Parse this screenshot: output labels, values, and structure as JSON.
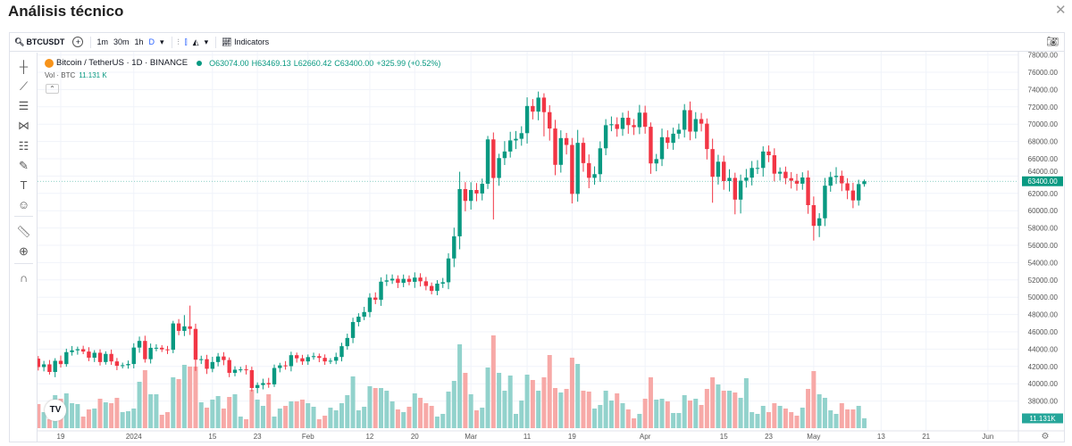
{
  "dialog": {
    "title": "Análisis técnico",
    "close_icon": "close-icon"
  },
  "toolbar": {
    "symbol": "BTCUSDT",
    "intervals": [
      "1m",
      "30m",
      "1h",
      "D"
    ],
    "indicators_label": "Indicators"
  },
  "legend": {
    "symbol_title": "Bitcoin / TetherUS · 1D · BINANCE",
    "open": "O63074.00",
    "high": "H63469.13",
    "low": "L62660.42",
    "close": "C63400.00",
    "change": "+325.99 (+0.52%)",
    "volume_label": "Vol · BTC",
    "volume_value": "11.131 K"
  },
  "colors": {
    "up": "#089981",
    "down": "#f23645",
    "up_vol": "#92d2cc",
    "down_vol": "#f7a9a7"
  },
  "chart_data": {
    "type": "candlestick",
    "first_open": 42900,
    "close": [
      41930,
      42240,
      41360,
      42650,
      42270,
      43650,
      43860,
      43990,
      43720,
      43010,
      43580,
      42510,
      43450,
      42580,
      42070,
      42140,
      42280,
      44180,
      44950,
      42840,
      44150,
      44160,
      43970,
      43930,
      46970,
      46110,
      46630,
      46340,
      42780,
      42840,
      41730,
      42510,
      43150,
      42740,
      41260,
      41620,
      41660,
      41570,
      39510,
      39850,
      40080,
      39930,
      41820,
      42120,
      42030,
      43300,
      42940,
      42580,
      43080,
      43190,
      42990,
      42580,
      42660,
      43090,
      44340,
      45290,
      47130,
      47750,
      48290,
      49960,
      49700,
      51800,
      51940,
      52130,
      51660,
      52120,
      51780,
      52270,
      51840,
      51300,
      50730,
      51570,
      51730,
      54480,
      57040,
      62500,
      61130,
      62390,
      61990,
      63110,
      68240,
      63780,
      66080,
      66840,
      68120,
      68310,
      68960,
      72100,
      71450,
      73070,
      71390,
      69500,
      65300,
      68390,
      67600,
      61940,
      67840,
      65500,
      63800,
      64220,
      67210,
      69880,
      69990,
      69450,
      70740,
      69890,
      69650,
      71330,
      69700,
      65460,
      65960,
      68490,
      67840,
      68900,
      69360,
      71620,
      69140,
      70590,
      70060,
      67120,
      63920,
      65660,
      63420,
      63790,
      61280,
      63470,
      63820,
      64940,
      64940,
      66840,
      66410,
      64280,
      64500,
      63760,
      63460,
      63120,
      63840,
      60640,
      58250,
      59120,
      62890,
      63890,
      64030,
      63160,
      62330,
      61190,
      63074,
      63400
    ],
    "wick_up_hundreds": [
      3,
      4,
      5,
      3,
      6,
      4,
      5,
      3,
      4,
      5,
      3,
      4,
      3,
      5,
      4,
      3,
      4,
      5,
      5,
      6,
      5,
      4,
      3,
      4,
      3,
      5,
      13,
      24,
      6,
      4,
      5,
      6,
      4,
      5,
      3,
      4,
      3,
      5,
      4,
      3,
      5,
      6,
      4,
      3,
      5,
      4,
      3,
      4,
      3,
      4,
      3,
      4,
      3,
      5,
      4,
      5,
      5,
      4,
      6,
      5,
      6,
      5,
      7,
      5,
      4,
      5,
      4,
      6,
      5,
      5,
      4,
      4,
      5,
      6,
      10,
      20,
      8,
      9,
      8,
      6,
      4,
      8,
      5,
      12,
      10,
      9,
      8,
      10,
      8,
      7,
      5,
      8,
      10,
      9,
      6,
      8,
      15,
      6,
      10,
      9,
      8,
      7,
      9,
      8,
      6,
      8,
      7,
      9,
      8,
      5,
      6,
      10,
      8,
      7,
      7,
      7,
      10,
      8,
      7,
      6,
      12,
      8,
      7,
      10,
      6,
      7,
      10,
      8,
      9,
      6,
      7,
      8,
      5,
      6,
      7,
      8,
      6,
      8,
      10,
      6,
      9,
      6,
      10,
      6,
      6,
      9,
      5,
      2
    ],
    "wick_down_hundreds": [
      4,
      5,
      3,
      6,
      4,
      3,
      4,
      5,
      3,
      4,
      5,
      4,
      3,
      4,
      5,
      3,
      4,
      5,
      6,
      4,
      5,
      4,
      3,
      5,
      4,
      5,
      6,
      7,
      13,
      5,
      6,
      4,
      5,
      6,
      5,
      4,
      3,
      5,
      4,
      6,
      5,
      4,
      3,
      5,
      4,
      6,
      5,
      4,
      4,
      3,
      5,
      4,
      3,
      4,
      5,
      4,
      6,
      5,
      4,
      6,
      5,
      7,
      5,
      4,
      6,
      5,
      4,
      7,
      6,
      5,
      4,
      5,
      5,
      8,
      10,
      15,
      12,
      10,
      9,
      8,
      6,
      48,
      9,
      8,
      7,
      10,
      8,
      12,
      9,
      10,
      28,
      14,
      12,
      9,
      11,
      11,
      9,
      10,
      12,
      8,
      9,
      8,
      7,
      9,
      8,
      10,
      9,
      8,
      8,
      12,
      9,
      8,
      7,
      8,
      6,
      9,
      10,
      8,
      9,
      12,
      30,
      9,
      10,
      12,
      17,
      16,
      8,
      9,
      7,
      10,
      8,
      9,
      8,
      7,
      9,
      8,
      7,
      10,
      17,
      13,
      9,
      7,
      8,
      9,
      10,
      9,
      6,
      3
    ],
    "volume_k": [
      27,
      18,
      10,
      37,
      33,
      39,
      28,
      27,
      13,
      21,
      22,
      33,
      29,
      28,
      34,
      18,
      19,
      22,
      52,
      65,
      38,
      38,
      15,
      18,
      57,
      55,
      71,
      69,
      69,
      29,
      23,
      32,
      36,
      22,
      35,
      38,
      13,
      10,
      43,
      32,
      25,
      38,
      13,
      22,
      25,
      30,
      30,
      32,
      28,
      24,
      10,
      14,
      23,
      20,
      28,
      37,
      58,
      20,
      24,
      47,
      45,
      45,
      42,
      30,
      21,
      18,
      24,
      39,
      34,
      28,
      25,
      13,
      16,
      41,
      53,
      94,
      62,
      38,
      20,
      23,
      68,
      104,
      62,
      42,
      59,
      16,
      31,
      60,
      54,
      42,
      57,
      82,
      45,
      40,
      44,
      79,
      72,
      42,
      41,
      22,
      26,
      42,
      31,
      39,
      28,
      21,
      11,
      16,
      33,
      57,
      32,
      33,
      30,
      17,
      17,
      37,
      31,
      33,
      26,
      44,
      57,
      49,
      42,
      42,
      40,
      34,
      56,
      18,
      16,
      25,
      18,
      28,
      25,
      22,
      18,
      14,
      23,
      44,
      64,
      38,
      34,
      20,
      16,
      28,
      21,
      21,
      25,
      11.1
    ],
    "price_ticks": [
      38000,
      40000,
      42000,
      44000,
      46000,
      48000,
      50000,
      52000,
      54000,
      56000,
      58000,
      60000,
      62000,
      64000,
      66000,
      68000,
      70000,
      72000,
      74000,
      76000,
      78000
    ],
    "price_tick_labels": [
      "38000.00",
      "40000.00",
      "42000.00",
      "44000.00",
      "46000.00",
      "48000.00",
      "50000.00",
      "52000.00",
      "54000.00",
      "56000.00",
      "58000.00",
      "60000.00",
      "62000.00",
      "64000.00",
      "66000.00",
      "68000.00",
      "70000.00",
      "72000.00",
      "74000.00",
      "76000.00",
      "78000.00"
    ],
    "time_ticks": [
      {
        "label": "19",
        "i": 4
      },
      {
        "label": "2024",
        "i": 17
      },
      {
        "label": "15",
        "i": 31
      },
      {
        "label": "23",
        "i": 39
      },
      {
        "label": "Feb",
        "i": 48
      },
      {
        "label": "12",
        "i": 59
      },
      {
        "label": "20",
        "i": 67
      },
      {
        "label": "Mar",
        "i": 77
      },
      {
        "label": "11",
        "i": 87
      },
      {
        "label": "19",
        "i": 95
      },
      {
        "label": "Apr",
        "i": 108
      },
      {
        "label": "15",
        "i": 122
      },
      {
        "label": "23",
        "i": 130
      },
      {
        "label": "May",
        "i": 138
      },
      {
        "label": "13",
        "i": 150
      },
      {
        "label": "21",
        "i": 158
      },
      {
        "label": "Jun",
        "i": 169
      }
    ],
    "last_price": 63400,
    "last_price_label": "63400.00",
    "last_volume_label": "11.131K",
    "ylim": [
      37000,
      78600
    ]
  }
}
